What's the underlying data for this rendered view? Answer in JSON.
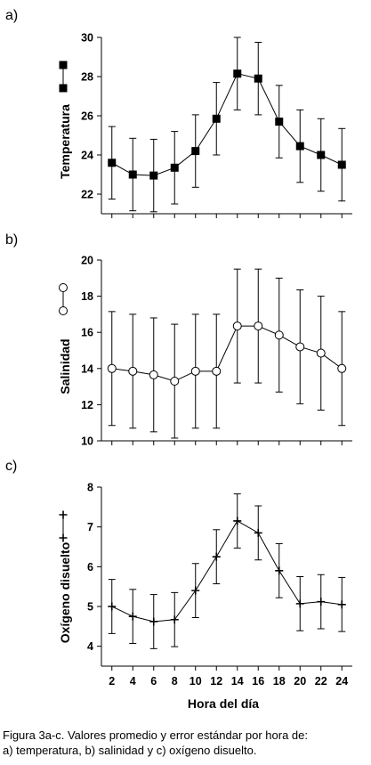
{
  "chart_data": [
    {
      "type": "line",
      "panel_label": "a)",
      "x": [
        2,
        4,
        6,
        8,
        10,
        12,
        14,
        16,
        18,
        20,
        22,
        24
      ],
      "xticks": [
        2,
        4,
        6,
        8,
        10,
        12,
        14,
        16,
        18,
        20,
        22,
        24
      ],
      "xlabel": "",
      "ylabel": "Temperatura",
      "ylim": [
        21,
        30
      ],
      "yticks": [
        22,
        24,
        26,
        28,
        30
      ],
      "marker": "square",
      "series": [
        {
          "values": [
            23.6,
            23.0,
            22.95,
            23.35,
            24.2,
            25.85,
            28.15,
            27.9,
            25.7,
            24.45,
            24.0,
            23.5
          ],
          "error": [
            1.85,
            1.85,
            1.85,
            1.85,
            1.85,
            1.85,
            1.85,
            1.85,
            1.85,
            1.85,
            1.85,
            1.85
          ]
        }
      ]
    },
    {
      "type": "line",
      "panel_label": "b)",
      "x": [
        2,
        4,
        6,
        8,
        10,
        12,
        14,
        16,
        18,
        20,
        22,
        24
      ],
      "xticks": [
        2,
        4,
        6,
        8,
        10,
        12,
        14,
        16,
        18,
        20,
        22,
        24
      ],
      "xlabel": "",
      "ylabel": "Salinidad",
      "ylim": [
        10,
        20
      ],
      "yticks": [
        10,
        12,
        14,
        16,
        18,
        20
      ],
      "marker": "circle",
      "series": [
        {
          "values": [
            14.0,
            13.85,
            13.65,
            13.3,
            13.85,
            13.85,
            16.35,
            16.35,
            15.85,
            15.2,
            14.85,
            14.0
          ],
          "error": [
            3.15,
            3.15,
            3.15,
            3.15,
            3.15,
            3.15,
            3.15,
            3.15,
            3.15,
            3.15,
            3.15,
            3.15
          ]
        }
      ]
    },
    {
      "type": "line",
      "panel_label": "c)",
      "x": [
        2,
        4,
        6,
        8,
        10,
        12,
        14,
        16,
        18,
        20,
        22,
        24
      ],
      "xticks": [
        2,
        4,
        6,
        8,
        10,
        12,
        14,
        16,
        18,
        20,
        22,
        24
      ],
      "xlabel": "Hora del día",
      "ylabel": "Oxígeno disuelto",
      "ylim": [
        3.5,
        8
      ],
      "yticks": [
        4,
        5,
        6,
        7,
        8
      ],
      "marker": "plus",
      "series": [
        {
          "values": [
            5.0,
            4.75,
            4.62,
            4.67,
            5.4,
            6.25,
            7.15,
            6.85,
            5.9,
            5.07,
            5.12,
            5.05
          ],
          "error": [
            0.68,
            0.68,
            0.68,
            0.68,
            0.68,
            0.68,
            0.68,
            0.68,
            0.68,
            0.68,
            0.68,
            0.68
          ]
        }
      ]
    }
  ],
  "caption": {
    "line1": "Figura 3a-c. Valores promedio y error estándar por hora de:",
    "line2": "a) temperatura, b) salinidad y c) oxígeno disuelto."
  }
}
